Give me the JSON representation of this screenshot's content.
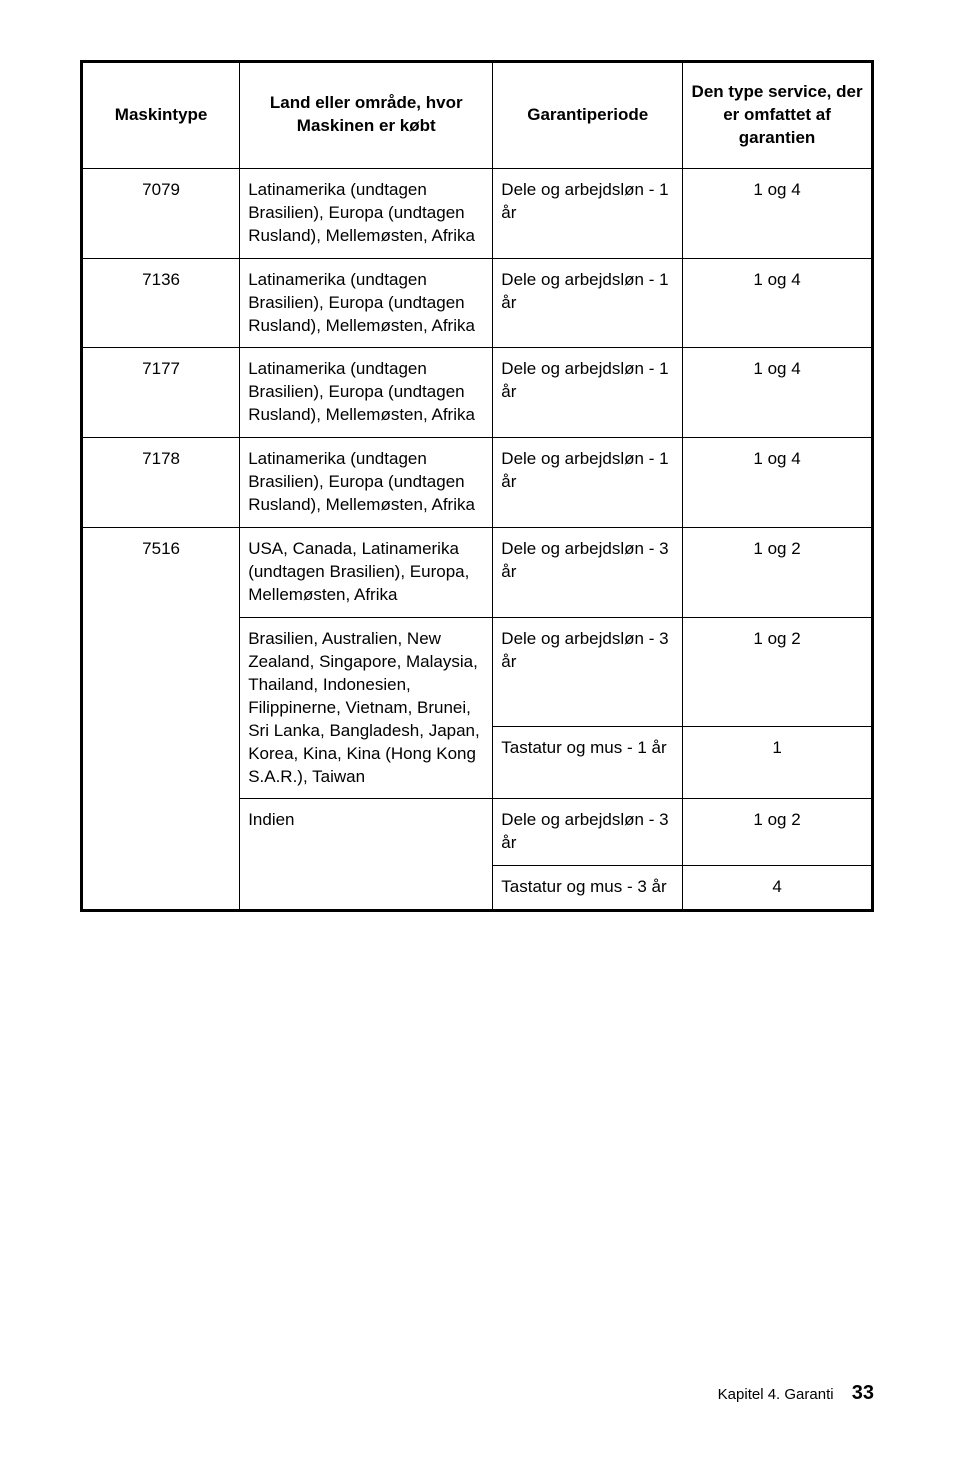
{
  "table": {
    "headers": {
      "maskintype": "Maskintype",
      "land": "Land eller område, hvor Maskinen er købt",
      "periode": "Garantiperiode",
      "service": "Den type service, der er omfattet af garantien"
    },
    "rows": [
      {
        "maskintype": "7079",
        "land": "Latinamerika (undtagen Brasilien), Europa (undtagen Rusland), Mellemøsten, Afrika",
        "periode": "Dele og arbejdsløn - 1 år",
        "service": "1 og 4"
      },
      {
        "maskintype": "7136",
        "land": "Latinamerika (undtagen Brasilien), Europa (undtagen Rusland), Mellemøsten, Afrika",
        "periode": "Dele og arbejdsløn - 1 år",
        "service": "1 og 4"
      },
      {
        "maskintype": "7177",
        "land": "Latinamerika (undtagen Brasilien), Europa (undtagen Rusland), Mellemøsten, Afrika",
        "periode": "Dele og arbejdsløn - 1 år",
        "service": "1 og 4"
      },
      {
        "maskintype": "7178",
        "land": "Latinamerika (undtagen Brasilien), Europa (undtagen Rusland), Mellemøsten, Afrika",
        "periode": "Dele og arbejdsløn - 1 år",
        "service": "1 og 4"
      },
      {
        "maskintype": "7516",
        "blocks": [
          {
            "land": "USA, Canada, Latinamerika (undtagen Brasilien), Europa, Mellemøsten, Afrika",
            "periods": [
              {
                "periode": "Dele og arbejdsløn - 3 år",
                "service": "1 og 2"
              }
            ]
          },
          {
            "land": "Brasilien, Australien, New Zealand, Singapore, Malaysia, Thailand, Indonesien, Filippinerne, Vietnam, Brunei, Sri Lanka, Bangladesh, Japan, Korea, Kina, Kina (Hong Kong S.A.R.), Taiwan",
            "periods": [
              {
                "periode": "Dele og arbejdsløn - 3 år",
                "service": "1 og 2"
              },
              {
                "periode": "Tastatur og mus - 1 år",
                "service": "1"
              }
            ]
          },
          {
            "land": "Indien",
            "periods": [
              {
                "periode": "Dele og arbejdsløn - 3 år",
                "service": "1 og 2"
              },
              {
                "periode": "Tastatur og mus - 3 år",
                "service": "4"
              }
            ]
          }
        ]
      }
    ]
  },
  "footer": {
    "chapter": "Kapitel 4. Garanti",
    "page": "33"
  },
  "style": {
    "background_color": "#ffffff",
    "text_color": "#000000",
    "border_color": "#000000",
    "font_family": "Helvetica, Arial, sans-serif",
    "body_fontsize": 17,
    "header_fontsize": 17,
    "footer_fontsize": 15,
    "pagenum_fontsize": 20
  }
}
